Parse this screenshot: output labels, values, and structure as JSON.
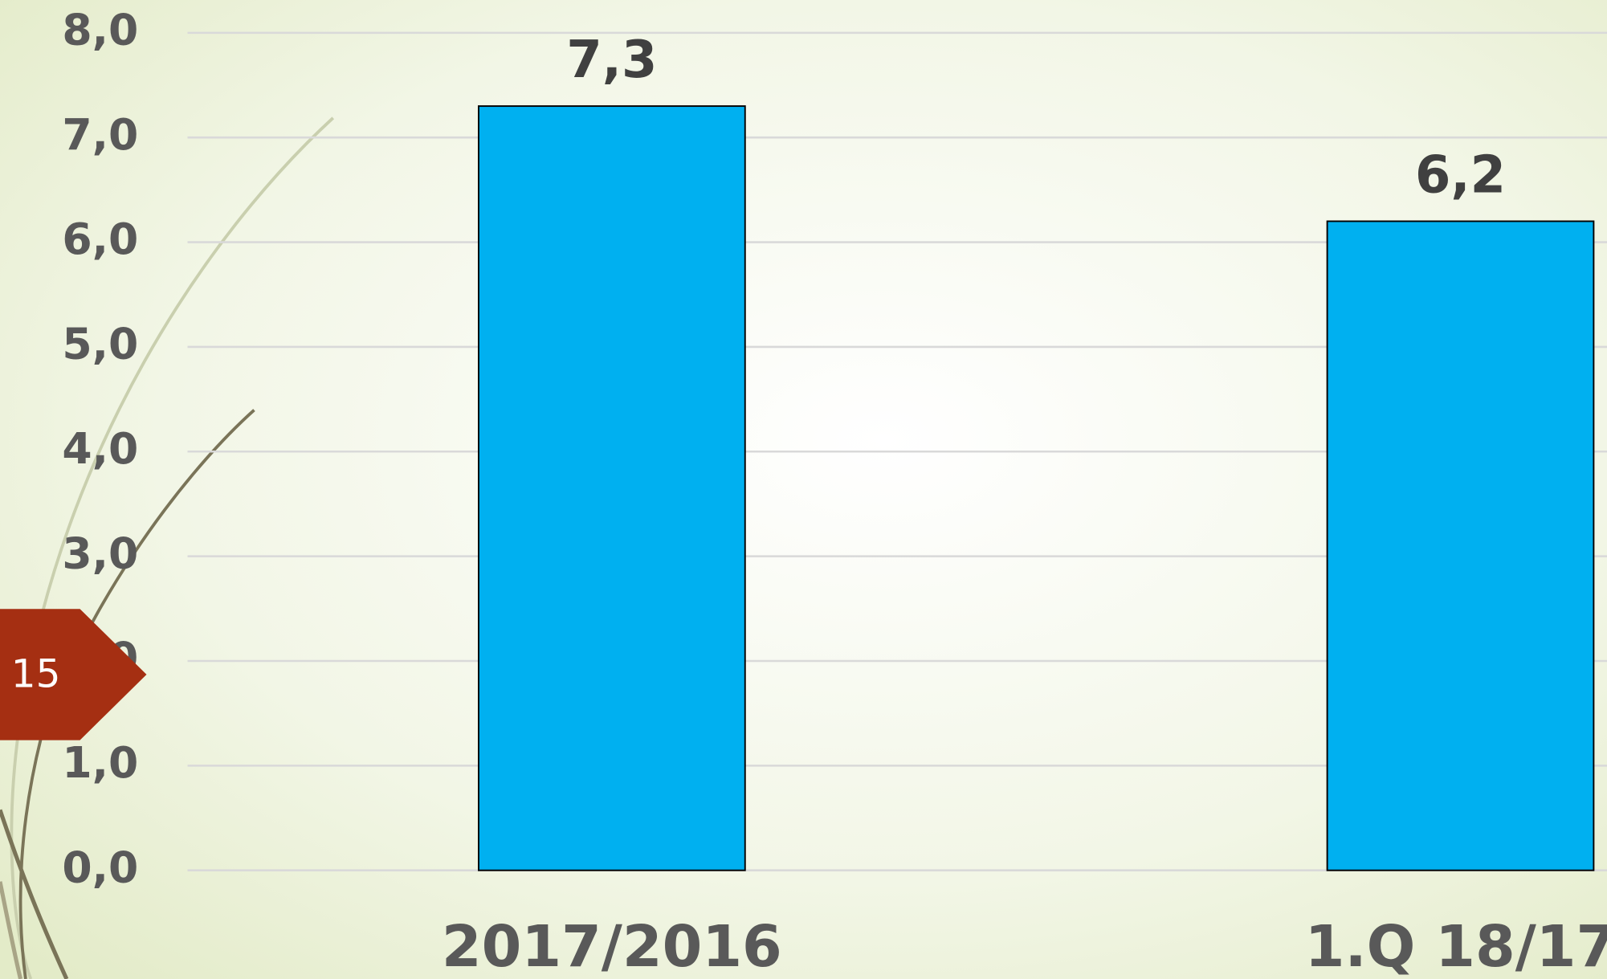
{
  "slide_number": "15",
  "chart_data": {
    "type": "bar",
    "categories": [
      "2017/2016",
      "1.Q 18/17"
    ],
    "values": [
      7.3,
      6.2
    ],
    "value_labels": [
      "7,3",
      "6,2"
    ],
    "color": "#00b0f0",
    "ylim": [
      0,
      8
    ],
    "yticks": [
      {
        "value": 0,
        "label": "0,0"
      },
      {
        "value": 1,
        "label": "1,0"
      },
      {
        "value": 2,
        "label": "2,0"
      },
      {
        "value": 3,
        "label": "3,0"
      },
      {
        "value": 4,
        "label": "4,0"
      },
      {
        "value": 5,
        "label": "5,0"
      },
      {
        "value": 6,
        "label": "6,0"
      },
      {
        "value": 7,
        "label": "7,0"
      },
      {
        "value": 8,
        "label": "8,0"
      }
    ],
    "grid": true
  }
}
